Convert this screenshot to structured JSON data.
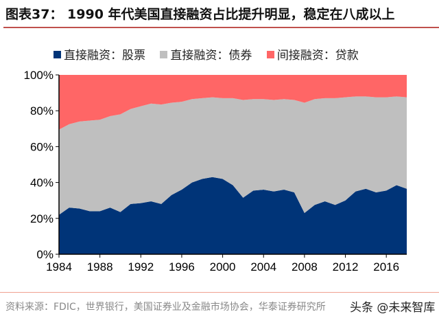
{
  "title": "图表37：  1990 年代美国直接融资占比提升明显，稳定在八成以上",
  "source": "资料来源：FDIC，世界银行，美国证券业及金融市场协会，华泰证券研究所",
  "watermark": "头条 @未来智库",
  "chart_data": {
    "type": "area",
    "stacked": true,
    "legend_position": "top",
    "grid": false,
    "x": [
      1984,
      1985,
      1986,
      1987,
      1988,
      1989,
      1990,
      1991,
      1992,
      1993,
      1994,
      1995,
      1996,
      1997,
      1998,
      1999,
      2000,
      2001,
      2002,
      2003,
      2004,
      2005,
      2006,
      2007,
      2008,
      2009,
      2010,
      2011,
      2012,
      2013,
      2014,
      2015,
      2016,
      2017,
      2018
    ],
    "xticks": [
      "1984",
      "1988",
      "1992",
      "1996",
      "2000",
      "2004",
      "2008",
      "2012",
      "2016"
    ],
    "yticks": [
      "0%",
      "20%",
      "40%",
      "60%",
      "80%",
      "100%"
    ],
    "ylim": [
      0,
      100
    ],
    "series": [
      {
        "name": "直接融资：股票",
        "color": "#003478",
        "values": [
          22,
          26,
          25.5,
          24,
          24,
          26,
          23.5,
          28,
          28.5,
          29.5,
          28,
          33,
          36,
          40,
          42,
          43,
          42,
          38.5,
          31.5,
          35.5,
          36,
          35,
          36,
          34.5,
          23,
          27.5,
          29.5,
          27.5,
          30,
          35,
          36.5,
          34.5,
          35.5,
          38.5,
          36.5
        ]
      },
      {
        "name": "直接融资：债券",
        "color": "#bfbfbf",
        "values": [
          47.5,
          46.5,
          48.5,
          50.5,
          51,
          51,
          54.5,
          53,
          54,
          54.5,
          55.5,
          51.5,
          49,
          46.5,
          45,
          44.5,
          45,
          48.5,
          54.5,
          51,
          50.5,
          51,
          50.5,
          51.5,
          61.5,
          59,
          57.5,
          59.5,
          57.5,
          53,
          51.5,
          53,
          52,
          49.5,
          51
        ]
      },
      {
        "name": "间接融资：贷款",
        "color": "#ff6666",
        "values": [
          30.5,
          27.5,
          26,
          25.5,
          25,
          23,
          22,
          19,
          17.5,
          16,
          16.5,
          15.5,
          15,
          13.5,
          13,
          12.5,
          13,
          13,
          14,
          13.5,
          13.5,
          14,
          13.5,
          14,
          15.5,
          13.5,
          13,
          13,
          12.5,
          12,
          12,
          12.5,
          12.5,
          12,
          12.5
        ]
      }
    ]
  }
}
